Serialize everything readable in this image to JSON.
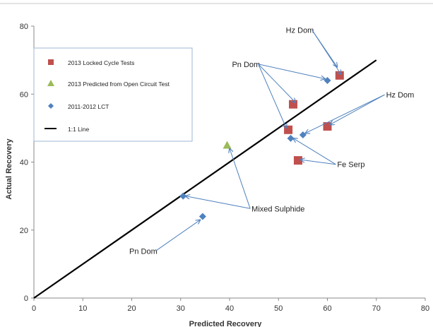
{
  "chart_data": {
    "type": "scatter",
    "title": "",
    "xlabel": "Predicted Recovery",
    "ylabel": "Actual Recovery",
    "xlim": [
      0,
      80
    ],
    "ylim": [
      0,
      80
    ],
    "xticks": [
      0,
      10,
      20,
      30,
      40,
      50,
      60,
      70,
      80
    ],
    "yticks": [
      0,
      20,
      40,
      60,
      80
    ],
    "grid": false,
    "legend_position": "top-left",
    "series": [
      {
        "name": "2013 Locked Cycle Tests",
        "marker": "square",
        "color": "#c0504d",
        "points": [
          {
            "x": 53.0,
            "y": 57.0
          },
          {
            "x": 52.0,
            "y": 49.5
          },
          {
            "x": 60.0,
            "y": 50.5
          },
          {
            "x": 62.5,
            "y": 65.5
          },
          {
            "x": 54.0,
            "y": 40.5
          }
        ]
      },
      {
        "name": "2013 Predicted from Open Circuit Test",
        "marker": "triangle",
        "color": "#9bbb59",
        "points": [
          {
            "x": 39.5,
            "y": 45.0
          }
        ]
      },
      {
        "name": "2011-2012 LCT",
        "marker": "diamond",
        "color": "#4f81bd",
        "points": [
          {
            "x": 60.0,
            "y": 64.0
          },
          {
            "x": 52.5,
            "y": 47.0
          },
          {
            "x": 55.0,
            "y": 48.0
          },
          {
            "x": 30.5,
            "y": 30.0
          },
          {
            "x": 34.5,
            "y": 24.0
          }
        ]
      },
      {
        "name": "1:1 Line",
        "marker": "line",
        "color": "#000000",
        "points": [
          {
            "x": 0,
            "y": 0
          },
          {
            "x": 70,
            "y": 70
          }
        ]
      }
    ],
    "annotations": [
      {
        "text": "Hz Dom",
        "x": 51.5,
        "y": 78.0,
        "arrows_to": [
          {
            "x": 62.0,
            "y": 68.0
          },
          {
            "x": 62.8,
            "y": 65.8
          }
        ]
      },
      {
        "text": "Pn Dom",
        "x": 40.5,
        "y": 68.0,
        "arrows_to": [
          {
            "x": 59.5,
            "y": 64.5
          },
          {
            "x": 53.5,
            "y": 57.5
          },
          {
            "x": 51.6,
            "y": 50.0
          }
        ]
      },
      {
        "text": "Hz Dom",
        "x": 72.0,
        "y": 59.0,
        "arrows_to": [
          {
            "x": 60.5,
            "y": 51.0
          },
          {
            "x": 55.5,
            "y": 48.5
          }
        ]
      },
      {
        "text": "Fe Serp",
        "x": 62.0,
        "y": 38.5,
        "arrows_to": [
          {
            "x": 53.0,
            "y": 47.0
          },
          {
            "x": 54.5,
            "y": 40.7
          }
        ]
      },
      {
        "text": "Mixed Sulphide",
        "x": 44.5,
        "y": 25.5,
        "arrows_to": [
          {
            "x": 31.0,
            "y": 30.0
          },
          {
            "x": 40.0,
            "y": 44.0
          }
        ]
      },
      {
        "text": "Pn Dom",
        "x": 19.5,
        "y": 13.0,
        "arrows_to": [
          {
            "x": 34.0,
            "y": 23.0
          }
        ]
      }
    ]
  }
}
